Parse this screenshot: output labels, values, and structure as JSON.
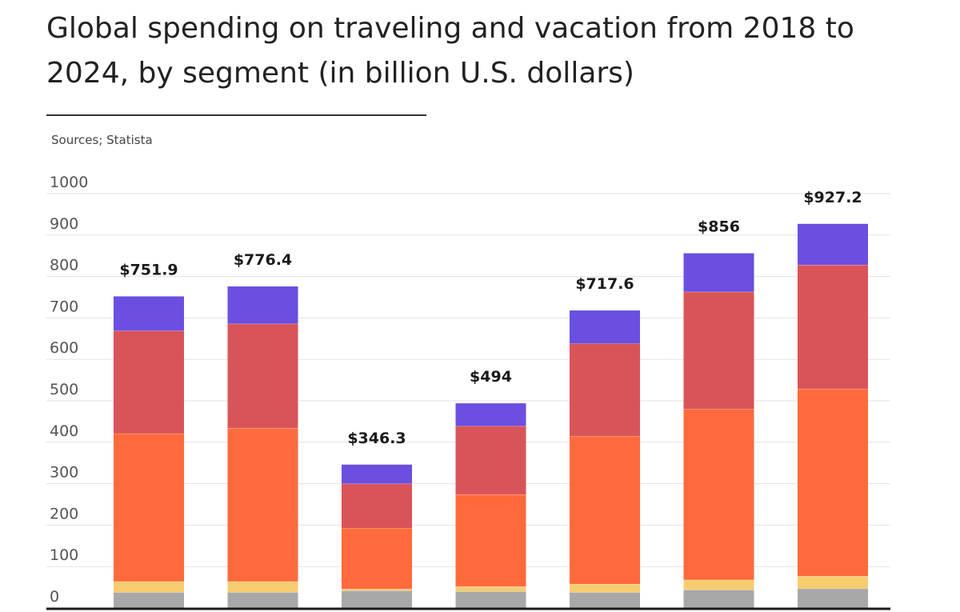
{
  "title": "Global spending on traveling and vacation from 2018 to 2024, by segment (in billion U.S. dollars)",
  "source": "Sources; Statista",
  "chart_data": {
    "type": "bar",
    "stacked": true,
    "title": "Global spending on traveling and vacation from 2018 to 2024, by segment (in billion U.S. dollars)",
    "xlabel": "",
    "ylabel": "",
    "ylim": [
      0,
      1000
    ],
    "yticks": [
      0,
      100,
      200,
      300,
      400,
      500,
      600,
      700,
      800,
      900,
      1000
    ],
    "grid": true,
    "legend": "none",
    "categories": [
      "",
      "",
      "",
      "",
      "",
      "",
      ""
    ],
    "series": [
      {
        "color": "#a8a8a8",
        "values": [
          38,
          38,
          42,
          40,
          38,
          44,
          47
        ]
      },
      {
        "color": "#f7cc6f",
        "values": [
          26,
          26,
          4,
          12,
          20,
          24,
          30
        ]
      },
      {
        "color": "#ff6a3c",
        "values": [
          357,
          370,
          147,
          222,
          357,
          412,
          452
        ]
      },
      {
        "color": "#d95458",
        "values": [
          248,
          252,
          107,
          165,
          223,
          283,
          299
        ]
      },
      {
        "color": "#6a4fe0",
        "values": [
          83,
          90,
          46,
          55,
          80,
          93,
          99
        ]
      }
    ],
    "totals": [
      751.9,
      776.4,
      346.3,
      494,
      717.6,
      856,
      927.2
    ],
    "total_labels": [
      "$751.9",
      "$776.4",
      "$346.3",
      "$494",
      "$717.6",
      "$856",
      "$927.2"
    ]
  }
}
